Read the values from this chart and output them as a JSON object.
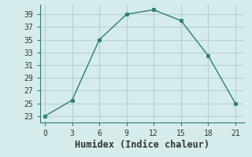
{
  "x": [
    0,
    3,
    6,
    9,
    12,
    15,
    18,
    21
  ],
  "y": [
    23,
    25.5,
    35,
    39,
    39.7,
    38,
    32.5,
    25
  ],
  "line_color": "#2e7d6e",
  "marker": "s",
  "marker_size": 3,
  "background_color": "#d6ecec",
  "grid_color": "#b8d0d0",
  "xlabel": "Humidex (Indice chaleur)",
  "xlim": [
    -0.5,
    22
  ],
  "ylim": [
    22,
    40.5
  ],
  "xticks": [
    0,
    3,
    6,
    9,
    12,
    15,
    18,
    21
  ],
  "yticks": [
    23,
    25,
    27,
    29,
    31,
    33,
    35,
    37,
    39
  ],
  "tick_label_fontsize": 7,
  "xlabel_fontsize": 8.5,
  "linewidth": 1.0
}
